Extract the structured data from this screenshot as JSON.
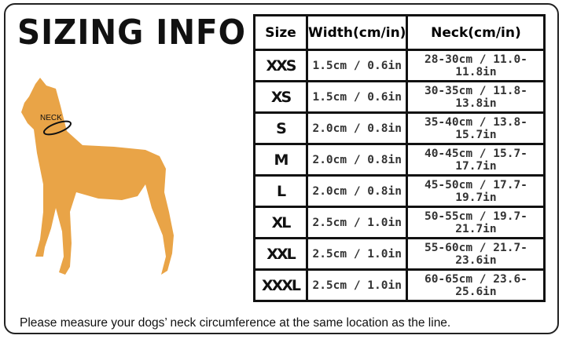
{
  "title": "SIZING INFO",
  "neck_label": "NECK",
  "dog_color": "#E9A447",
  "table": {
    "headers": [
      "Size",
      "Width(cm/in)",
      "Neck(cm/in)"
    ],
    "rows": [
      {
        "size": "XXS",
        "width": "1.5cm / 0.6in",
        "neck": "28-30cm / 11.0-11.8in"
      },
      {
        "size": "XS",
        "width": "1.5cm / 0.6in",
        "neck": "30-35cm / 11.8-13.8in"
      },
      {
        "size": "S",
        "width": "2.0cm / 0.8in",
        "neck": "35-40cm / 13.8-15.7in"
      },
      {
        "size": "M",
        "width": "2.0cm / 0.8in",
        "neck": "40-45cm / 15.7-17.7in"
      },
      {
        "size": "L",
        "width": "2.0cm / 0.8in",
        "neck": "45-50cm / 17.7-19.7in"
      },
      {
        "size": "XL",
        "width": "2.5cm / 1.0in",
        "neck": "50-55cm / 19.7-21.7in"
      },
      {
        "size": "XXL",
        "width": "2.5cm / 1.0in",
        "neck": "55-60cm / 21.7-23.6in"
      },
      {
        "size": "XXXL",
        "width": "2.5cm / 1.0in",
        "neck": "60-65cm / 23.6-25.6in"
      }
    ]
  },
  "note": "Please measure your dogs’  neck circumference at the same location as the line."
}
